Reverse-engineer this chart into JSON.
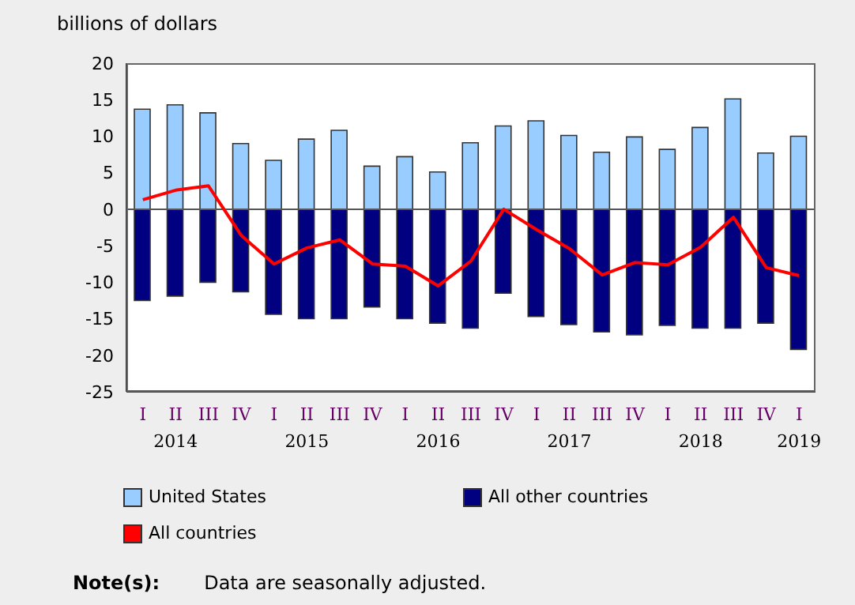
{
  "chart_data": {
    "type": "bar",
    "ylabel": "billions of dollars",
    "stacked": true,
    "categories": [
      "I",
      "II\n2014",
      "III",
      "IV",
      "I",
      "II\n2015",
      "III",
      "IV",
      "I",
      "II\n2016",
      "III",
      "IV",
      "I",
      "II\n2017",
      "III",
      "IV",
      "I",
      "II\n2018",
      "III",
      "IV",
      "I\n2019"
    ],
    "series": [
      {
        "name": "United States",
        "color": "#99ccff",
        "values": [
          13.7,
          14.3,
          13.2,
          9.0,
          6.7,
          9.6,
          10.8,
          5.9,
          7.2,
          5.1,
          9.1,
          11.4,
          12.1,
          10.1,
          7.8,
          9.9,
          8.2,
          11.2,
          15.1,
          7.7,
          10.0
        ]
      },
      {
        "name": "All other countries",
        "color": "#000080",
        "values": [
          -12.5,
          -11.9,
          -10.0,
          -11.3,
          -14.4,
          -15.0,
          -15.0,
          -13.4,
          -15.0,
          -15.6,
          -16.3,
          -11.5,
          -14.7,
          -15.8,
          -16.8,
          -17.2,
          -15.9,
          -16.3,
          -16.3,
          -15.6,
          -19.2
        ]
      },
      {
        "name": "All countries",
        "type": "line",
        "color": "#ff0000",
        "values": [
          1.3,
          2.6,
          3.2,
          -3.6,
          -7.5,
          -5.3,
          -4.2,
          -7.5,
          -7.8,
          -10.5,
          -7.1,
          0.0,
          -2.8,
          -5.4,
          -9.0,
          -7.3,
          -7.6,
          -5.2,
          -1.1,
          -8.0,
          -9.1
        ]
      }
    ],
    "ylim": [
      -25,
      20
    ],
    "yticks": [
      -25,
      -20,
      -15,
      -10,
      -5,
      0,
      5,
      10,
      15,
      20
    ],
    "ref_lines": [
      {
        "axis": "y",
        "value": 0,
        "color": "#555555"
      }
    ],
    "grid": false,
    "legend": "bottom",
    "marker": "none",
    "annotations": [
      "Note(s):",
      "Data are seasonally adjusted."
    ]
  }
}
